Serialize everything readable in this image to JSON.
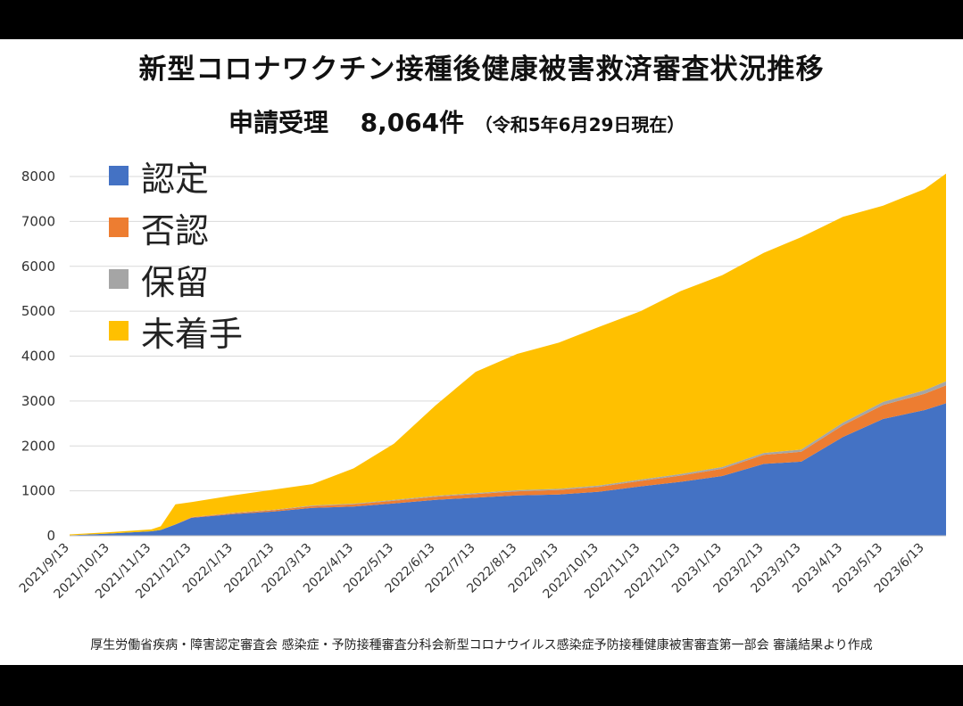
{
  "title": "新型コロナワクチン接種後健康被害救済審査状況推移",
  "subtitle": {
    "label": "申請受理",
    "count": "8,064件",
    "as_of": "（令和5年6月29日現在）"
  },
  "source_note": "厚生労働省疾病・障害認定審査会 感染症・予防接種審査分科会新型コロナウイルス感染症予防接種健康被害審査第一部会 審議結果より作成",
  "colors": {
    "認定": "#4472C4",
    "否認": "#ED7D31",
    "保留": "#A5A5A5",
    "未着手": "#FFC000"
  },
  "chart_data": {
    "type": "area",
    "stacked": true,
    "x": [
      "2021/9/13",
      "2021/10/13",
      "2021/11/13",
      "2021/11/20",
      "2021/12/1",
      "2021/12/13",
      "2022/1/13",
      "2022/2/13",
      "2022/3/13",
      "2022/4/13",
      "2022/5/13",
      "2022/6/13",
      "2022/7/13",
      "2022/8/13",
      "2022/9/13",
      "2022/10/13",
      "2022/11/13",
      "2022/12/13",
      "2023/1/13",
      "2023/2/13",
      "2023/3/13",
      "2023/4/13",
      "2023/5/13",
      "2023/6/13",
      "2023/6/29"
    ],
    "x_tick_labels": [
      "2021/9/13",
      "2021/10/13",
      "2021/11/13",
      "2021/12/13",
      "2022/1/13",
      "2022/2/13",
      "2022/3/13",
      "2022/4/13",
      "2022/5/13",
      "2022/6/13",
      "2022/7/13",
      "2022/8/13",
      "2022/9/13",
      "2022/10/13",
      "2022/11/13",
      "2022/12/13",
      "2023/1/13",
      "2023/2/13",
      "2023/3/13",
      "2023/4/13",
      "2023/5/13",
      "2023/6/13"
    ],
    "series": [
      {
        "name": "認定",
        "values": [
          10,
          50,
          100,
          130,
          250,
          400,
          480,
          540,
          620,
          650,
          720,
          800,
          850,
          900,
          920,
          980,
          1100,
          1200,
          1330,
          1600,
          1650,
          2200,
          2600,
          2800,
          2950
        ]
      },
      {
        "name": "否認",
        "values": [
          0,
          0,
          0,
          0,
          5,
          10,
          20,
          30,
          40,
          50,
          60,
          70,
          80,
          90,
          100,
          110,
          120,
          140,
          160,
          200,
          220,
          260,
          310,
          360,
          400
        ]
      },
      {
        "name": "保留",
        "values": [
          0,
          0,
          0,
          0,
          0,
          5,
          10,
          10,
          15,
          15,
          20,
          20,
          20,
          25,
          25,
          30,
          30,
          35,
          40,
          45,
          50,
          60,
          70,
          80,
          90
        ]
      },
      {
        "name": "未着手",
        "values": [
          20,
          30,
          40,
          80,
          445,
          335,
          390,
          450,
          475,
          785,
          1250,
          2010,
          2700,
          3035,
          3255,
          3530,
          3750,
          4075,
          4270,
          4455,
          4730,
          4580,
          4370,
          4480,
          4624
        ]
      }
    ],
    "y_ticks": [
      0,
      1000,
      2000,
      3000,
      4000,
      5000,
      6000,
      7000,
      8000
    ],
    "ylim": [
      0,
      8000
    ],
    "grid": true,
    "legend_position": "top-left"
  }
}
